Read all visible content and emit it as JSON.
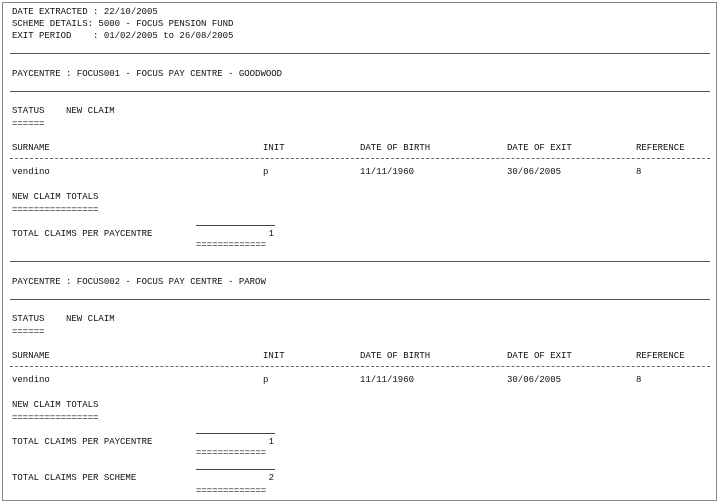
{
  "header": {
    "date_extracted": "DATE EXTRACTED : 22/10/2005",
    "scheme_details": "SCHEME DETAILS: 5000 - FOCUS PENSION FUND",
    "exit_period": "EXIT PERIOD    : 01/02/2005 to 26/08/2005"
  },
  "columns": [
    "SURNAME",
    "INIT",
    "DATE OF BIRTH",
    "DATE OF EXIT",
    "REFERENCE"
  ],
  "sections": [
    {
      "paycentre": "PAYCENTRE : FOCUS001 - FOCUS PAY CENTRE - GOODWOOD",
      "status": "STATUS    NEW CLAIM",
      "status_underline": "======",
      "rows": [
        [
          "vendino",
          "p",
          "11/11/1960",
          "30/06/2005",
          "8"
        ]
      ],
      "totals_title": "NEW CLAIM TOTALS",
      "totals_underline": "================",
      "total_label": "TOTAL CLAIMS PER PAYCENTRE",
      "total_value": "1",
      "total_underline": "============="
    },
    {
      "paycentre": "PAYCENTRE : FOCUS002 - FOCUS PAY CENTRE - PAROW",
      "status": "STATUS    NEW CLAIM",
      "status_underline": "======",
      "rows": [
        [
          "vendino",
          "p",
          "11/11/1960",
          "30/06/2005",
          "8"
        ]
      ],
      "totals_title": "NEW CLAIM TOTALS",
      "totals_underline": "================",
      "total_label": "TOTAL CLAIMS PER PAYCENTRE",
      "total_value": "1",
      "total_underline": "============="
    }
  ],
  "scheme_total": {
    "label": "TOTAL CLAIMS PER SCHEME",
    "value": "2",
    "underline": "============="
  }
}
